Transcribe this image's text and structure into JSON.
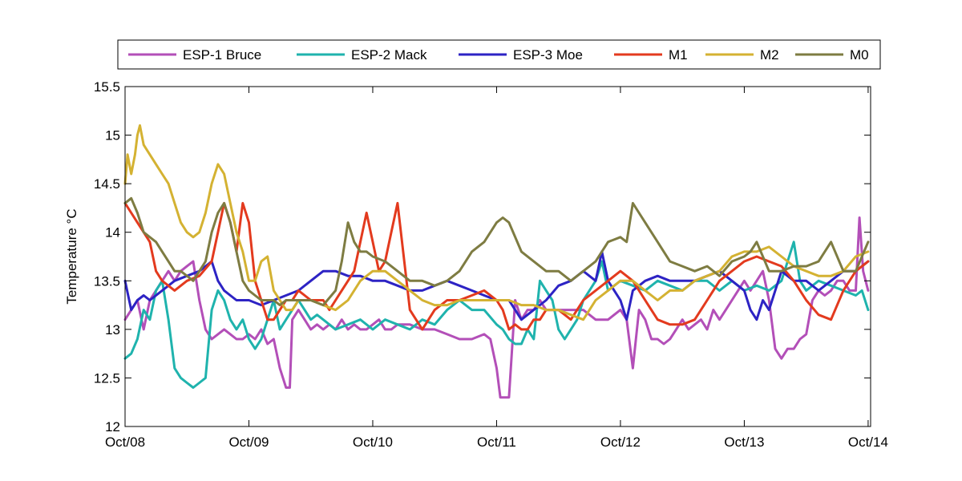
{
  "chart_data": {
    "type": "line",
    "title": "",
    "xlabel": "",
    "ylabel": "Temperature °C",
    "xlim": [
      0,
      6.02
    ],
    "ylim": [
      12,
      15.5
    ],
    "xticks": [
      {
        "value": 0,
        "label": "Oct/08"
      },
      {
        "value": 1,
        "label": "Oct/09"
      },
      {
        "value": 2,
        "label": "Oct/10"
      },
      {
        "value": 3,
        "label": "Oct/11"
      },
      {
        "value": 4,
        "label": "Oct/12"
      },
      {
        "value": 5,
        "label": "Oct/13"
      },
      {
        "value": 6,
        "label": "Oct/14"
      }
    ],
    "yticks": [
      {
        "value": 12,
        "label": "12"
      },
      {
        "value": 12.5,
        "label": "12.5"
      },
      {
        "value": 13,
        "label": "13"
      },
      {
        "value": 13.5,
        "label": "13.5"
      },
      {
        "value": 14,
        "label": "14"
      },
      {
        "value": 14.5,
        "label": "14.5"
      },
      {
        "value": 15,
        "label": "15"
      },
      {
        "value": 15.5,
        "label": "15.5"
      }
    ],
    "legend_position": "top",
    "series": [
      {
        "name": "ESP-1 Bruce",
        "color": "#b34fb8",
        "x": [
          0.0,
          0.05,
          0.1,
          0.15,
          0.2,
          0.25,
          0.3,
          0.35,
          0.4,
          0.45,
          0.5,
          0.55,
          0.6,
          0.65,
          0.7,
          0.75,
          0.8,
          0.85,
          0.9,
          0.95,
          1.0,
          1.05,
          1.1,
          1.15,
          1.2,
          1.25,
          1.3,
          1.33,
          1.35,
          1.4,
          1.45,
          1.5,
          1.55,
          1.6,
          1.65,
          1.7,
          1.75,
          1.8,
          1.85,
          1.9,
          1.95,
          2.0,
          2.05,
          2.1,
          2.15,
          2.2,
          2.3,
          2.4,
          2.5,
          2.6,
          2.7,
          2.8,
          2.9,
          2.95,
          3.0,
          3.03,
          3.06,
          3.1,
          3.15,
          3.2,
          3.25,
          3.3,
          3.35,
          3.4,
          3.5,
          3.6,
          3.7,
          3.8,
          3.9,
          4.0,
          4.05,
          4.1,
          4.15,
          4.2,
          4.25,
          4.3,
          4.35,
          4.4,
          4.45,
          4.5,
          4.55,
          4.6,
          4.65,
          4.7,
          4.75,
          4.8,
          4.85,
          4.9,
          4.95,
          5.0,
          5.05,
          5.1,
          5.15,
          5.2,
          5.25,
          5.3,
          5.35,
          5.4,
          5.45,
          5.5,
          5.55,
          5.6,
          5.65,
          5.7,
          5.75,
          5.8,
          5.85,
          5.9,
          5.93,
          5.96,
          6.0
        ],
        "y": [
          13.1,
          13.2,
          13.3,
          13.0,
          13.3,
          13.4,
          13.5,
          13.6,
          13.5,
          13.6,
          13.65,
          13.7,
          13.3,
          13.0,
          12.9,
          12.95,
          13.0,
          12.95,
          12.9,
          12.9,
          12.95,
          12.9,
          13.0,
          12.85,
          12.9,
          12.6,
          12.4,
          12.4,
          13.1,
          13.2,
          13.1,
          13.0,
          13.05,
          13.0,
          13.05,
          13.0,
          13.1,
          13.0,
          13.05,
          13.0,
          13.0,
          13.05,
          13.1,
          13.0,
          13.0,
          13.05,
          13.05,
          13.0,
          13.0,
          12.95,
          12.9,
          12.9,
          12.95,
          12.9,
          12.6,
          12.3,
          12.3,
          12.3,
          13.3,
          13.1,
          13.2,
          13.2,
          13.3,
          13.2,
          13.2,
          13.2,
          13.2,
          13.1,
          13.1,
          13.2,
          13.1,
          12.6,
          13.2,
          13.1,
          12.9,
          12.9,
          12.85,
          12.9,
          13.0,
          13.1,
          13.0,
          13.05,
          13.1,
          13.0,
          13.2,
          13.1,
          13.2,
          13.3,
          13.4,
          13.5,
          13.4,
          13.5,
          13.6,
          13.3,
          12.8,
          12.7,
          12.8,
          12.8,
          12.9,
          12.95,
          13.3,
          13.4,
          13.35,
          13.4,
          13.5,
          13.5,
          13.4,
          13.4,
          14.15,
          13.6,
          13.4
        ]
      },
      {
        "name": "ESP-2 Mack",
        "color": "#1fb3ad",
        "x": [
          0.0,
          0.05,
          0.1,
          0.15,
          0.2,
          0.25,
          0.3,
          0.35,
          0.4,
          0.45,
          0.5,
          0.55,
          0.6,
          0.65,
          0.7,
          0.75,
          0.8,
          0.85,
          0.9,
          0.95,
          1.0,
          1.05,
          1.1,
          1.15,
          1.2,
          1.25,
          1.3,
          1.35,
          1.4,
          1.45,
          1.5,
          1.55,
          1.6,
          1.7,
          1.8,
          1.9,
          2.0,
          2.1,
          2.2,
          2.3,
          2.4,
          2.5,
          2.6,
          2.7,
          2.8,
          2.9,
          3.0,
          3.05,
          3.1,
          3.15,
          3.2,
          3.25,
          3.3,
          3.35,
          3.4,
          3.45,
          3.5,
          3.55,
          3.6,
          3.65,
          3.7,
          3.75,
          3.8,
          3.85,
          3.9,
          4.0,
          4.1,
          4.2,
          4.3,
          4.4,
          4.5,
          4.6,
          4.7,
          4.8,
          4.9,
          5.0,
          5.1,
          5.2,
          5.3,
          5.4,
          5.45,
          5.5,
          5.6,
          5.7,
          5.8,
          5.9,
          5.95,
          6.0
        ],
        "y": [
          12.7,
          12.75,
          12.9,
          13.2,
          13.1,
          13.4,
          13.5,
          13.1,
          12.6,
          12.5,
          12.45,
          12.4,
          12.45,
          12.5,
          13.2,
          13.4,
          13.3,
          13.1,
          13.0,
          13.1,
          12.9,
          12.8,
          12.9,
          13.1,
          13.3,
          13.0,
          13.1,
          13.2,
          13.3,
          13.2,
          13.1,
          13.15,
          13.1,
          13.0,
          13.05,
          13.1,
          13.0,
          13.1,
          13.05,
          13.0,
          13.1,
          13.05,
          13.2,
          13.3,
          13.2,
          13.2,
          13.05,
          13.0,
          12.9,
          12.85,
          12.85,
          13.0,
          12.9,
          13.5,
          13.4,
          13.3,
          13.0,
          12.9,
          13.0,
          13.1,
          13.3,
          13.4,
          13.5,
          13.7,
          13.4,
          13.5,
          13.45,
          13.4,
          13.5,
          13.45,
          13.4,
          13.5,
          13.5,
          13.4,
          13.5,
          13.4,
          13.45,
          13.4,
          13.5,
          13.9,
          13.5,
          13.4,
          13.5,
          13.45,
          13.4,
          13.35,
          13.4,
          13.2
        ]
      },
      {
        "name": "ESP-3 Moe",
        "color": "#2d23c4",
        "x": [
          0.0,
          0.05,
          0.1,
          0.15,
          0.2,
          0.3,
          0.4,
          0.5,
          0.6,
          0.7,
          0.75,
          0.8,
          0.85,
          0.9,
          1.0,
          1.1,
          1.2,
          1.3,
          1.4,
          1.5,
          1.6,
          1.7,
          1.8,
          1.9,
          2.0,
          2.1,
          2.2,
          2.3,
          2.4,
          2.5,
          2.6,
          2.7,
          2.8,
          2.9,
          3.0,
          3.1,
          3.2,
          3.3,
          3.4,
          3.5,
          3.6,
          3.7,
          3.8,
          3.85,
          3.9,
          3.95,
          4.0,
          4.05,
          4.1,
          4.2,
          4.3,
          4.4,
          4.5,
          4.6,
          4.7,
          4.8,
          4.9,
          5.0,
          5.05,
          5.1,
          5.15,
          5.2,
          5.3,
          5.4,
          5.5,
          5.6,
          5.7,
          5.8,
          5.9,
          6.0
        ],
        "y": [
          13.5,
          13.2,
          13.3,
          13.35,
          13.3,
          13.4,
          13.5,
          13.55,
          13.6,
          13.7,
          13.5,
          13.4,
          13.35,
          13.3,
          13.3,
          13.25,
          13.3,
          13.35,
          13.4,
          13.5,
          13.6,
          13.6,
          13.55,
          13.55,
          13.5,
          13.5,
          13.45,
          13.4,
          13.4,
          13.45,
          13.5,
          13.45,
          13.4,
          13.35,
          13.3,
          13.3,
          13.1,
          13.2,
          13.3,
          13.45,
          13.5,
          13.6,
          13.5,
          13.8,
          13.5,
          13.4,
          13.3,
          13.1,
          13.4,
          13.5,
          13.55,
          13.5,
          13.5,
          13.5,
          13.55,
          13.6,
          13.5,
          13.4,
          13.2,
          13.1,
          13.3,
          13.2,
          13.6,
          13.5,
          13.5,
          13.4,
          13.5,
          13.6,
          13.6,
          13.7
        ]
      },
      {
        "name": "M1",
        "color": "#e33a1e",
        "x": [
          0.0,
          0.05,
          0.1,
          0.15,
          0.2,
          0.25,
          0.3,
          0.4,
          0.5,
          0.6,
          0.7,
          0.75,
          0.8,
          0.85,
          0.9,
          0.95,
          1.0,
          1.05,
          1.1,
          1.15,
          1.2,
          1.25,
          1.3,
          1.35,
          1.4,
          1.5,
          1.6,
          1.65,
          1.7,
          1.75,
          1.8,
          1.85,
          1.9,
          1.95,
          2.0,
          2.05,
          2.1,
          2.15,
          2.2,
          2.3,
          2.4,
          2.5,
          2.6,
          2.7,
          2.8,
          2.9,
          3.0,
          3.05,
          3.1,
          3.15,
          3.2,
          3.25,
          3.3,
          3.35,
          3.4,
          3.5,
          3.6,
          3.7,
          3.8,
          3.9,
          4.0,
          4.1,
          4.2,
          4.3,
          4.4,
          4.5,
          4.6,
          4.7,
          4.8,
          4.9,
          5.0,
          5.1,
          5.2,
          5.3,
          5.4,
          5.5,
          5.6,
          5.7,
          5.8,
          5.9,
          6.0
        ],
        "y": [
          14.3,
          14.2,
          14.1,
          14.0,
          13.9,
          13.6,
          13.5,
          13.4,
          13.5,
          13.55,
          13.7,
          14.0,
          14.3,
          14.1,
          13.8,
          14.3,
          14.1,
          13.5,
          13.3,
          13.1,
          13.1,
          13.2,
          13.3,
          13.3,
          13.4,
          13.3,
          13.3,
          13.2,
          13.3,
          13.4,
          13.5,
          13.6,
          13.9,
          14.2,
          13.9,
          13.6,
          13.7,
          14.0,
          14.3,
          13.2,
          13.0,
          13.2,
          13.3,
          13.3,
          13.35,
          13.4,
          13.3,
          13.2,
          13.0,
          13.05,
          13.0,
          13.0,
          13.1,
          13.1,
          13.2,
          13.2,
          13.1,
          13.3,
          13.4,
          13.5,
          13.6,
          13.5,
          13.3,
          13.1,
          13.05,
          13.05,
          13.1,
          13.3,
          13.5,
          13.6,
          13.7,
          13.75,
          13.7,
          13.65,
          13.5,
          13.3,
          13.15,
          13.1,
          13.4,
          13.6,
          13.7
        ]
      },
      {
        "name": "M2",
        "color": "#d4b232",
        "x": [
          0.0,
          0.02,
          0.05,
          0.08,
          0.1,
          0.12,
          0.15,
          0.2,
          0.25,
          0.3,
          0.35,
          0.4,
          0.45,
          0.5,
          0.55,
          0.6,
          0.65,
          0.7,
          0.75,
          0.8,
          0.85,
          0.9,
          0.95,
          1.0,
          1.05,
          1.1,
          1.15,
          1.2,
          1.25,
          1.3,
          1.35,
          1.4,
          1.5,
          1.6,
          1.7,
          1.8,
          1.9,
          2.0,
          2.1,
          2.2,
          2.3,
          2.4,
          2.5,
          2.6,
          2.7,
          2.8,
          2.9,
          3.0,
          3.1,
          3.2,
          3.3,
          3.4,
          3.5,
          3.6,
          3.7,
          3.8,
          3.9,
          4.0,
          4.1,
          4.2,
          4.3,
          4.4,
          4.5,
          4.6,
          4.7,
          4.8,
          4.9,
          5.0,
          5.1,
          5.2,
          5.3,
          5.4,
          5.5,
          5.6,
          5.7,
          5.8,
          5.9,
          6.0
        ],
        "y": [
          14.5,
          14.8,
          14.6,
          14.8,
          15.0,
          15.1,
          14.9,
          14.8,
          14.7,
          14.6,
          14.5,
          14.3,
          14.1,
          14.0,
          13.95,
          14.0,
          14.2,
          14.5,
          14.7,
          14.6,
          14.3,
          14.0,
          13.8,
          13.5,
          13.5,
          13.7,
          13.75,
          13.4,
          13.3,
          13.2,
          13.2,
          13.3,
          13.3,
          13.25,
          13.2,
          13.3,
          13.5,
          13.6,
          13.6,
          13.5,
          13.4,
          13.3,
          13.25,
          13.25,
          13.3,
          13.3,
          13.3,
          13.3,
          13.3,
          13.25,
          13.25,
          13.2,
          13.2,
          13.15,
          13.1,
          13.3,
          13.4,
          13.5,
          13.5,
          13.4,
          13.3,
          13.4,
          13.4,
          13.5,
          13.55,
          13.6,
          13.75,
          13.8,
          13.8,
          13.85,
          13.75,
          13.65,
          13.6,
          13.55,
          13.55,
          13.6,
          13.75,
          13.8
        ]
      },
      {
        "name": "M0",
        "color": "#7e7c42",
        "x": [
          0.0,
          0.05,
          0.1,
          0.15,
          0.2,
          0.25,
          0.3,
          0.35,
          0.4,
          0.45,
          0.5,
          0.55,
          0.6,
          0.65,
          0.7,
          0.75,
          0.8,
          0.85,
          0.9,
          0.95,
          1.0,
          1.05,
          1.1,
          1.15,
          1.2,
          1.25,
          1.3,
          1.35,
          1.4,
          1.5,
          1.6,
          1.7,
          1.75,
          1.8,
          1.85,
          1.9,
          1.95,
          2.0,
          2.1,
          2.2,
          2.3,
          2.4,
          2.5,
          2.6,
          2.7,
          2.8,
          2.9,
          3.0,
          3.05,
          3.1,
          3.2,
          3.3,
          3.4,
          3.5,
          3.6,
          3.7,
          3.8,
          3.9,
          4.0,
          4.05,
          4.1,
          4.15,
          4.2,
          4.3,
          4.4,
          4.5,
          4.6,
          4.7,
          4.8,
          4.9,
          5.0,
          5.05,
          5.1,
          5.2,
          5.3,
          5.4,
          5.5,
          5.6,
          5.7,
          5.8,
          5.9,
          6.0
        ],
        "y": [
          14.3,
          14.35,
          14.2,
          14.0,
          13.95,
          13.9,
          13.8,
          13.7,
          13.6,
          13.6,
          13.55,
          13.5,
          13.6,
          13.7,
          14.0,
          14.2,
          14.3,
          14.1,
          13.8,
          13.5,
          13.4,
          13.35,
          13.3,
          13.3,
          13.3,
          13.25,
          13.3,
          13.3,
          13.3,
          13.3,
          13.25,
          13.4,
          13.7,
          14.1,
          13.9,
          13.8,
          13.8,
          13.75,
          13.7,
          13.6,
          13.5,
          13.5,
          13.45,
          13.5,
          13.6,
          13.8,
          13.9,
          14.1,
          14.15,
          14.1,
          13.8,
          13.7,
          13.6,
          13.6,
          13.5,
          13.6,
          13.7,
          13.9,
          13.95,
          13.9,
          14.3,
          14.2,
          14.1,
          13.9,
          13.7,
          13.65,
          13.6,
          13.65,
          13.55,
          13.7,
          13.75,
          13.8,
          13.9,
          13.6,
          13.6,
          13.65,
          13.65,
          13.7,
          13.9,
          13.6,
          13.6,
          13.9
        ]
      }
    ]
  }
}
